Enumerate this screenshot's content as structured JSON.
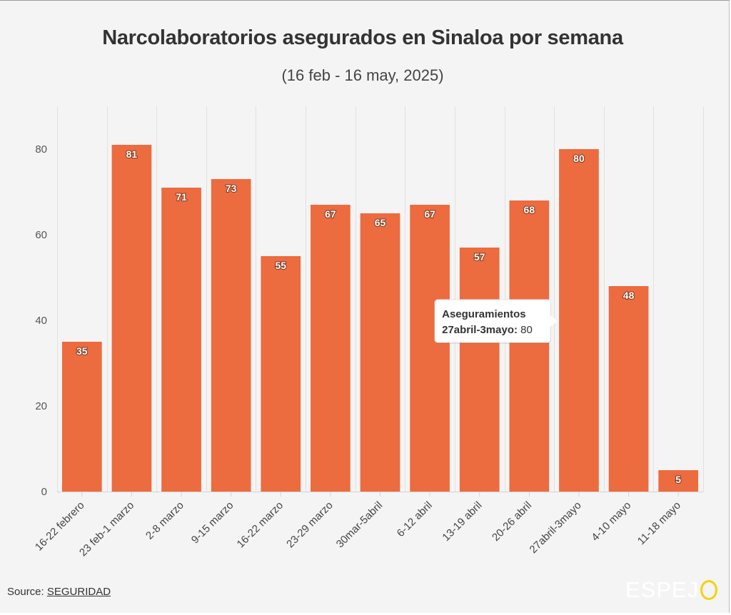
{
  "chart_data": {
    "type": "bar",
    "title": "Narcolaboratorios asegurados en Sinaloa por semana",
    "subtitle": "(16 feb - 16 may, 2025)",
    "categories": [
      "16-22 febrero",
      "23 feb-1 marzo",
      "2-8 marzo",
      "9-15 marzo",
      "16-22 marzo",
      "23-29 marzo",
      "30mar-5abril",
      "6-12 abril",
      "13-19 abril",
      "20-26 abril",
      "27abril-3mayo",
      "4-10 mayo",
      "11-18 mayo"
    ],
    "series": [
      {
        "name": "Aseguramientos",
        "values": [
          35,
          81,
          71,
          73,
          55,
          67,
          65,
          67,
          57,
          68,
          80,
          48,
          5
        ]
      }
    ],
    "ylim": [
      0,
      90
    ],
    "yticks": [
      0,
      20,
      40,
      60,
      80
    ],
    "grid": true,
    "bar_color": "#ec6b3f",
    "data_labels": true
  },
  "tooltip": {
    "series_name": "Aseguramientos",
    "category": "27abril-3mayo",
    "value": 80
  },
  "source": {
    "prefix": "Source: ",
    "link_text": "SEGURIDAD"
  },
  "brand": {
    "text": "ESPEJ",
    "last_letter": "O",
    "ring_color": "#f5d20a"
  }
}
